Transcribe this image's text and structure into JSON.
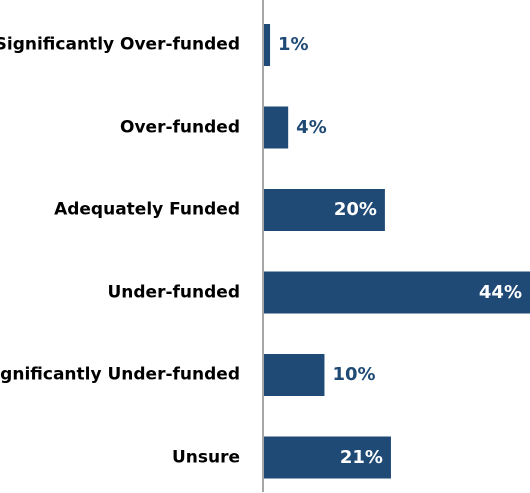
{
  "chart_data": {
    "type": "barh",
    "categories": [
      "Significantly Over-funded",
      "Over-funded",
      "Adequately Funded",
      "Under-funded",
      "Significantly Under-funded",
      "Unsure"
    ],
    "values": [
      1,
      4,
      20,
      44,
      10,
      21
    ],
    "value_labels": [
      "1%",
      "4%",
      "20%",
      "44%",
      "10%",
      "21%"
    ],
    "color": "#1f4a75",
    "xlim": [
      0,
      44
    ]
  }
}
